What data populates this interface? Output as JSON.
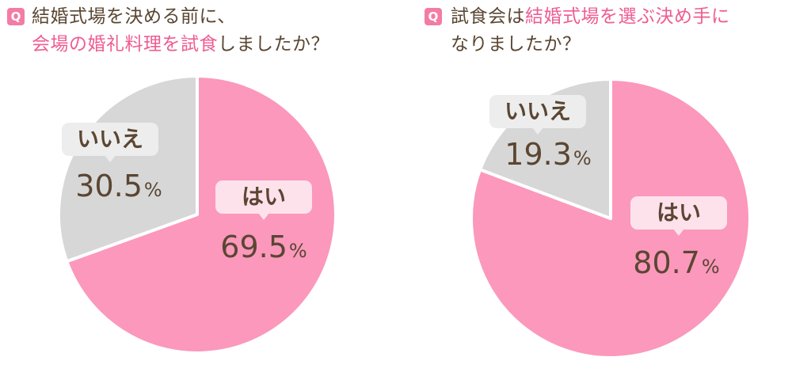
{
  "colors": {
    "yes": "#fb98bc",
    "no": "#d7d7d7",
    "label_bg_yes": "#fde2ec",
    "label_bg_no": "#ededed",
    "text": "#5a4632",
    "accent": "#ee5d92",
    "badge": "#f47ba6"
  },
  "questions": [
    {
      "badge": "Q",
      "title_line1": "結婚式場を決める前に、",
      "title_line2_hl": "会場の婚礼料理を試食",
      "title_line2_rest": "しましたか？"
    },
    {
      "badge": "Q",
      "title_line1_pre": "試食会は",
      "title_line1_hl": "結婚式場を選ぶ決め手に",
      "title_line2": "なりましたか？"
    }
  ],
  "chart_data": [
    {
      "type": "pie",
      "title": "結婚式場を決める前に、会場の婚礼料理を試食しましたか？",
      "slices": [
        {
          "label": "はい",
          "value": 69.5,
          "display": "69.5",
          "unit": "%"
        },
        {
          "label": "いいえ",
          "value": 30.5,
          "display": "30.5",
          "unit": "%"
        }
      ]
    },
    {
      "type": "pie",
      "title": "試食会は結婚式場を選ぶ決め手になりましたか？",
      "slices": [
        {
          "label": "はい",
          "value": 80.7,
          "display": "80.7",
          "unit": "%"
        },
        {
          "label": "いいえ",
          "value": 19.3,
          "display": "19.3",
          "unit": "%"
        }
      ]
    }
  ]
}
